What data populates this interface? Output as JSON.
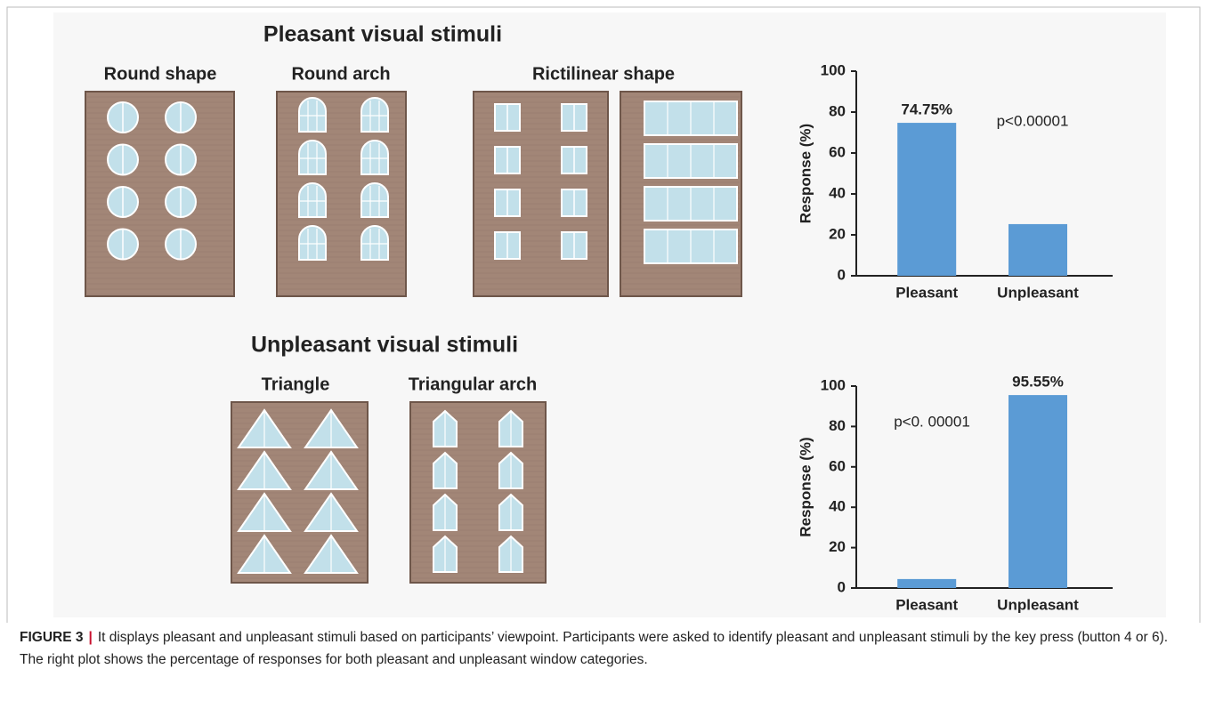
{
  "figure": {
    "top_heading": "Pleasant visual stimuli",
    "bottom_heading": "Unpleasant visual stimuli",
    "building_labels": [
      "Round shape",
      "Round arch",
      "Rictilinear shape",
      "Triangle",
      "Triangular arch"
    ],
    "caption": {
      "label": "FIGURE 3",
      "separator": "|",
      "text": "It displays pleasant and unpleasant stimuli based on participants’ viewpoint. Participants were asked to identify pleasant and unpleasant stimuli by the key press (button 4 or 6). The right plot shows the percentage of responses for both pleasant and unpleasant window categories."
    }
  },
  "chart_data": [
    {
      "type": "bar",
      "y_label": "Response (%)",
      "categories": [
        "Pleasant",
        "Unpleasant"
      ],
      "values": [
        74.75,
        25.25
      ],
      "value_labels": [
        "74.75%",
        null
      ],
      "color": "#5b9bd5",
      "annotation": "p<0.00001",
      "ylim": [
        0,
        100
      ],
      "yticks": [
        0,
        20,
        40,
        60,
        80,
        100
      ]
    },
    {
      "type": "bar",
      "y_label": "Response (%)",
      "categories": [
        "Pleasant",
        "Unpleasant"
      ],
      "values": [
        4.45,
        95.55
      ],
      "value_labels": [
        null,
        "95.55%"
      ],
      "color": "#5b9bd5",
      "annotation": "p<0. 00001",
      "ylim": [
        0,
        100
      ],
      "yticks": [
        0,
        20,
        40,
        60,
        80,
        100
      ]
    }
  ]
}
